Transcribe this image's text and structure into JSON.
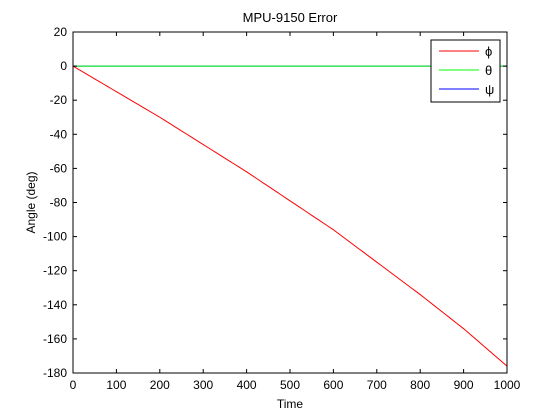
{
  "chart_data": {
    "type": "line",
    "title": "MPU-9150 Error",
    "xlabel": "Time",
    "ylabel": "Angle (deg)",
    "xlim": [
      0,
      1000
    ],
    "ylim": [
      -180,
      20
    ],
    "xticks": [
      0,
      100,
      200,
      300,
      400,
      500,
      600,
      700,
      800,
      900,
      1000
    ],
    "yticks": [
      20,
      0,
      -20,
      -40,
      -60,
      -80,
      -100,
      -120,
      -140,
      -160,
      -180
    ],
    "grid": false,
    "legend_position": "top-right",
    "series": [
      {
        "name": "ϕ",
        "color": "#ff0000",
        "x": [
          0,
          100,
          200,
          300,
          400,
          500,
          600,
          700,
          800,
          900,
          1000
        ],
        "y": [
          0,
          -15,
          -30,
          -46,
          -62,
          -79,
          -96,
          -115,
          -134,
          -154,
          -176
        ]
      },
      {
        "name": "θ",
        "color": "#00ff00",
        "x": [
          0,
          1000
        ],
        "y": [
          0,
          0
        ]
      },
      {
        "name": "ψ",
        "color": "#0000ff",
        "x": [
          0,
          1000
        ],
        "y": [
          0,
          0
        ]
      }
    ]
  }
}
